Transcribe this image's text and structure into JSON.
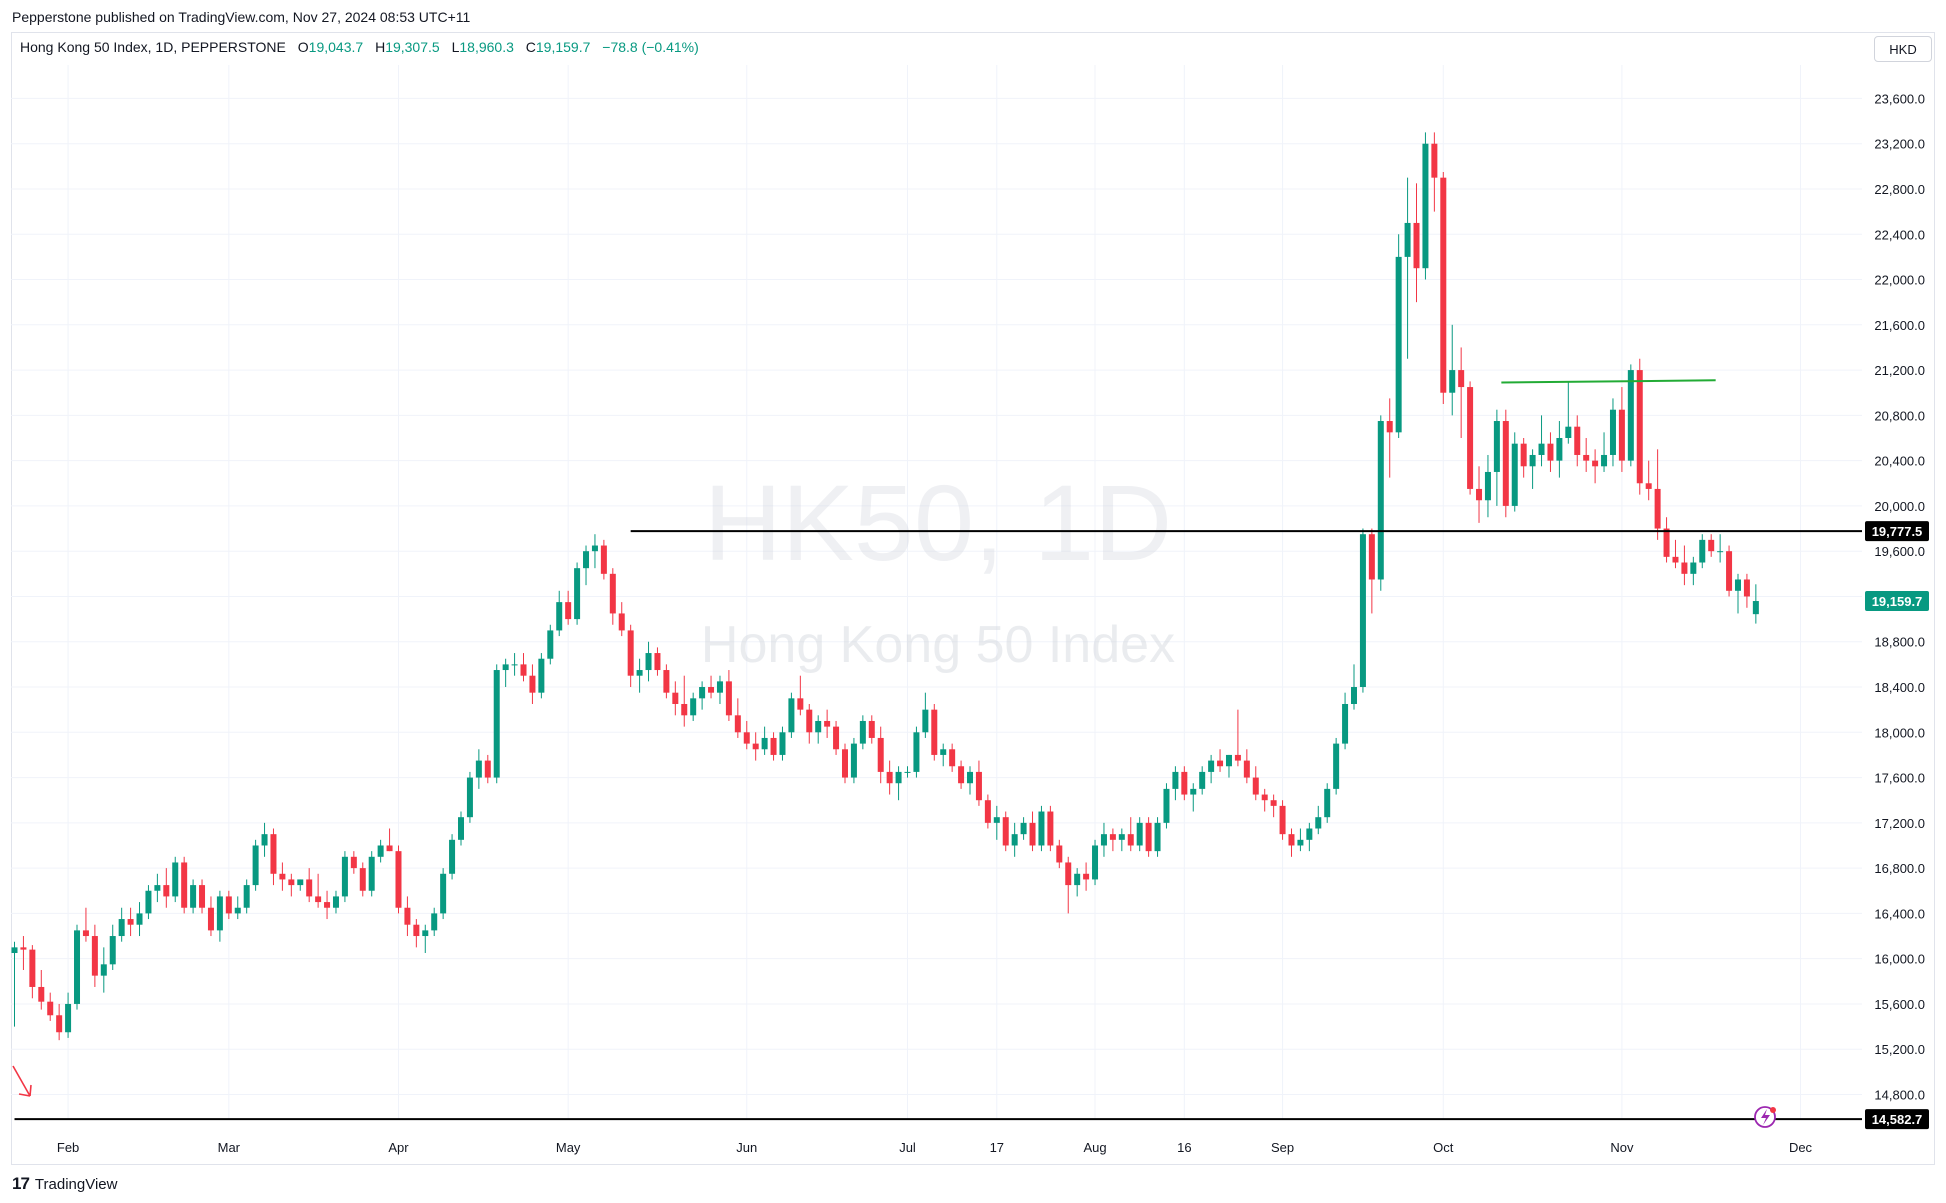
{
  "header": {
    "published": "Pepperstone published on TradingView.com, Nov 27, 2024 08:53 UTC+11"
  },
  "legend": {
    "symbol": "Hong Kong 50 Index, 1D, PEPPERSTONE",
    "open_label": "O",
    "open": "19,043.7",
    "high_label": "H",
    "high": "19,307.5",
    "low_label": "L",
    "low": "18,960.3",
    "close_label": "C",
    "close": "19,159.7",
    "change": "−78.8 (−0.41%)"
  },
  "currency": "HKD",
  "watermark": {
    "symbol": "HK50, 1D",
    "name": "Hong Kong 50 Index"
  },
  "footer": {
    "brand": "TradingView"
  },
  "colors": {
    "up": "#089981",
    "down": "#f23645",
    "grid": "#f0f3fa",
    "line_black": "#000000",
    "line_green": "#22ab35"
  },
  "chart_data": {
    "type": "candlestick",
    "y_ticks": [
      14800,
      15200,
      15600,
      16000,
      16400,
      16800,
      17200,
      17600,
      18000,
      18400,
      18800,
      19200,
      19600,
      20000,
      20400,
      20800,
      21200,
      21600,
      22000,
      22400,
      22800,
      23200,
      23600
    ],
    "y_tick_labels": [
      "14,800.0",
      "15,200.0",
      "15,600.0",
      "16,000.0",
      "16,400.0",
      "16,800.0",
      "17,200.0",
      "17,600.0",
      "18,000.0",
      "18,400.0",
      "18,800.0",
      "19,200.0",
      "19,600.0",
      "20,000.0",
      "20,400.0",
      "20,800.0",
      "21,200.0",
      "21,600.0",
      "22,000.0",
      "22,400.0",
      "22,800.0",
      "23,200.0",
      "23,600.0"
    ],
    "ylim": [
      14500,
      24000
    ],
    "x_labels": [
      {
        "label": "Feb",
        "index": 6
      },
      {
        "label": "Mar",
        "index": 24
      },
      {
        "label": "Apr",
        "index": 43
      },
      {
        "label": "May",
        "index": 62
      },
      {
        "label": "Jun",
        "index": 82
      },
      {
        "label": "Jul",
        "index": 100
      },
      {
        "label": "17",
        "index": 110
      },
      {
        "label": "Aug",
        "index": 121
      },
      {
        "label": "16",
        "index": 131
      },
      {
        "label": "Sep",
        "index": 142
      },
      {
        "label": "Oct",
        "index": 160
      },
      {
        "label": "Nov",
        "index": 180
      },
      {
        "label": "Dec",
        "index": 200
      }
    ],
    "price_labels": [
      {
        "label": "19,777.5",
        "value": 19777.5,
        "style": "black"
      },
      {
        "label": "19,159.7",
        "value": 19159.7,
        "style": "green"
      },
      {
        "label": "14,582.7",
        "value": 14582.7,
        "style": "black"
      }
    ],
    "horizontal_lines": [
      {
        "value": 19777.5,
        "from_index": 69,
        "color": "#000000"
      },
      {
        "value": 14582.7,
        "from_index": 0,
        "color": "#000000"
      }
    ],
    "trend_lines": [
      {
        "from_index": 166.5,
        "from_value": 21090,
        "to_index": 190.5,
        "to_value": 21110,
        "color": "#22ab35"
      }
    ],
    "candles": [
      [
        16050,
        16150,
        15400,
        16100
      ],
      [
        16100,
        16200,
        15900,
        16080
      ],
      [
        16080,
        16120,
        15650,
        15750
      ],
      [
        15750,
        15900,
        15550,
        15620
      ],
      [
        15620,
        15700,
        15450,
        15500
      ],
      [
        15500,
        15600,
        15280,
        15350
      ],
      [
        15350,
        15700,
        15300,
        15600
      ],
      [
        15600,
        16300,
        15550,
        16250
      ],
      [
        16250,
        16450,
        16150,
        16200
      ],
      [
        16200,
        16300,
        15750,
        15850
      ],
      [
        15850,
        16100,
        15700,
        15950
      ],
      [
        15950,
        16300,
        15900,
        16200
      ],
      [
        16200,
        16450,
        16150,
        16350
      ],
      [
        16350,
        16450,
        16200,
        16300
      ],
      [
        16300,
        16500,
        16200,
        16400
      ],
      [
        16400,
        16650,
        16350,
        16600
      ],
      [
        16600,
        16750,
        16500,
        16650
      ],
      [
        16650,
        16800,
        16450,
        16550
      ],
      [
        16550,
        16900,
        16500,
        16850
      ],
      [
        16850,
        16900,
        16400,
        16450
      ],
      [
        16450,
        16700,
        16400,
        16650
      ],
      [
        16650,
        16700,
        16400,
        16450
      ],
      [
        16450,
        16550,
        16200,
        16250
      ],
      [
        16250,
        16600,
        16150,
        16550
      ],
      [
        16550,
        16600,
        16350,
        16400
      ],
      [
        16400,
        16550,
        16350,
        16450
      ],
      [
        16450,
        16700,
        16400,
        16650
      ],
      [
        16650,
        17050,
        16600,
        17000
      ],
      [
        17000,
        17200,
        16900,
        17100
      ],
      [
        17100,
        17150,
        16650,
        16750
      ],
      [
        16750,
        16850,
        16600,
        16700
      ],
      [
        16700,
        16750,
        16550,
        16650
      ],
      [
        16650,
        16700,
        16600,
        16700
      ],
      [
        16700,
        16800,
        16500,
        16550
      ],
      [
        16550,
        16750,
        16450,
        16500
      ],
      [
        16500,
        16600,
        16350,
        16450
      ],
      [
        16450,
        16600,
        16400,
        16550
      ],
      [
        16550,
        16950,
        16500,
        16900
      ],
      [
        16900,
        16950,
        16750,
        16800
      ],
      [
        16800,
        16850,
        16550,
        16600
      ],
      [
        16600,
        16950,
        16550,
        16900
      ],
      [
        16900,
        17050,
        16850,
        17000
      ],
      [
        17000,
        17150,
        16950,
        16950
      ],
      [
        16950,
        17000,
        16400,
        16450
      ],
      [
        16450,
        16550,
        16200,
        16300
      ],
      [
        16300,
        16350,
        16100,
        16200
      ],
      [
        16200,
        16300,
        16050,
        16250
      ],
      [
        16250,
        16450,
        16200,
        16400
      ],
      [
        16400,
        16800,
        16350,
        16750
      ],
      [
        16750,
        17100,
        16700,
        17050
      ],
      [
        17050,
        17300,
        17000,
        17250
      ],
      [
        17250,
        17650,
        17200,
        17600
      ],
      [
        17600,
        17850,
        17500,
        17750
      ],
      [
        17750,
        17800,
        17550,
        17600
      ],
      [
        17600,
        18600,
        17550,
        18550
      ],
      [
        18550,
        18650,
        18400,
        18600
      ],
      [
        18600,
        18700,
        18500,
        18600
      ],
      [
        18600,
        18700,
        18450,
        18500
      ],
      [
        18500,
        18600,
        18250,
        18350
      ],
      [
        18350,
        18700,
        18300,
        18650
      ],
      [
        18650,
        18950,
        18600,
        18900
      ],
      [
        18900,
        19250,
        18850,
        19150
      ],
      [
        19150,
        19250,
        18950,
        19000
      ],
      [
        19000,
        19500,
        18950,
        19450
      ],
      [
        19450,
        19650,
        19300,
        19600
      ],
      [
        19600,
        19750,
        19450,
        19650
      ],
      [
        19650,
        19700,
        19350,
        19400
      ],
      [
        19400,
        19450,
        18950,
        19050
      ],
      [
        19050,
        19150,
        18850,
        18900
      ],
      [
        18900,
        18950,
        18400,
        18500
      ],
      [
        18500,
        18650,
        18350,
        18550
      ],
      [
        18550,
        18800,
        18450,
        18700
      ],
      [
        18700,
        18750,
        18500,
        18550
      ],
      [
        18550,
        18600,
        18300,
        18350
      ],
      [
        18350,
        18450,
        18150,
        18250
      ],
      [
        18250,
        18500,
        18050,
        18150
      ],
      [
        18150,
        18350,
        18100,
        18300
      ],
      [
        18300,
        18450,
        18200,
        18400
      ],
      [
        18400,
        18500,
        18300,
        18350
      ],
      [
        18350,
        18500,
        18250,
        18450
      ],
      [
        18450,
        18550,
        18100,
        18150
      ],
      [
        18150,
        18300,
        17950,
        18000
      ],
      [
        18000,
        18100,
        17850,
        17900
      ],
      [
        17900,
        18000,
        17750,
        17850
      ],
      [
        17850,
        18050,
        17800,
        17950
      ],
      [
        17950,
        18000,
        17750,
        17800
      ],
      [
        17800,
        18050,
        17750,
        18000
      ],
      [
        18000,
        18350,
        17950,
        18300
      ],
      [
        18300,
        18500,
        18150,
        18200
      ],
      [
        18200,
        18250,
        17900,
        18000
      ],
      [
        18000,
        18150,
        17900,
        18100
      ],
      [
        18100,
        18200,
        17950,
        18050
      ],
      [
        18050,
        18100,
        17800,
        17850
      ],
      [
        17850,
        17900,
        17550,
        17600
      ],
      [
        17600,
        17950,
        17550,
        17900
      ],
      [
        17900,
        18150,
        17850,
        18100
      ],
      [
        18100,
        18150,
        17900,
        17950
      ],
      [
        17950,
        18050,
        17550,
        17650
      ],
      [
        17650,
        17750,
        17450,
        17550
      ],
      [
        17550,
        17700,
        17400,
        17650
      ],
      [
        17650,
        17700,
        17600,
        17650
      ],
      [
        17650,
        18050,
        17600,
        18000
      ],
      [
        18000,
        18350,
        17950,
        18200
      ],
      [
        18200,
        18250,
        17750,
        17800
      ],
      [
        17800,
        17900,
        17700,
        17850
      ],
      [
        17850,
        17900,
        17650,
        17700
      ],
      [
        17700,
        17750,
        17500,
        17550
      ],
      [
        17550,
        17700,
        17450,
        17650
      ],
      [
        17650,
        17750,
        17350,
        17400
      ],
      [
        17400,
        17450,
        17150,
        17200
      ],
      [
        17200,
        17350,
        17050,
        17250
      ],
      [
        17250,
        17300,
        16950,
        17000
      ],
      [
        17000,
        17200,
        16900,
        17100
      ],
      [
        17100,
        17250,
        17050,
        17200
      ],
      [
        17200,
        17300,
        16950,
        17000
      ],
      [
        17000,
        17350,
        16950,
        17300
      ],
      [
        17300,
        17350,
        16950,
        17000
      ],
      [
        17000,
        17050,
        16800,
        16850
      ],
      [
        16850,
        16900,
        16400,
        16650
      ],
      [
        16650,
        16800,
        16550,
        16750
      ],
      [
        16750,
        16850,
        16600,
        16700
      ],
      [
        16700,
        17050,
        16650,
        17000
      ],
      [
        17000,
        17200,
        16900,
        17100
      ],
      [
        17100,
        17150,
        16950,
        17050
      ],
      [
        17050,
        17150,
        16950,
        17100
      ],
      [
        17100,
        17250,
        16950,
        17000
      ],
      [
        17000,
        17250,
        16950,
        17200
      ],
      [
        17200,
        17250,
        16900,
        16950
      ],
      [
        16950,
        17250,
        16900,
        17200
      ],
      [
        17200,
        17550,
        17150,
        17500
      ],
      [
        17500,
        17700,
        17400,
        17650
      ],
      [
        17650,
        17700,
        17400,
        17450
      ],
      [
        17450,
        17550,
        17300,
        17500
      ],
      [
        17500,
        17700,
        17450,
        17650
      ],
      [
        17650,
        17800,
        17550,
        17750
      ],
      [
        17750,
        17850,
        17650,
        17700
      ],
      [
        17700,
        17800,
        17600,
        17800
      ],
      [
        17800,
        18200,
        17700,
        17750
      ],
      [
        17750,
        17850,
        17550,
        17600
      ],
      [
        17600,
        17700,
        17400,
        17450
      ],
      [
        17450,
        17500,
        17300,
        17400
      ],
      [
        17400,
        17450,
        17250,
        17350
      ],
      [
        17350,
        17400,
        17050,
        17100
      ],
      [
        17100,
        17150,
        16900,
        17000
      ],
      [
        17000,
        17150,
        16950,
        17050
      ],
      [
        17050,
        17200,
        16950,
        17150
      ],
      [
        17150,
        17350,
        17100,
        17250
      ],
      [
        17250,
        17550,
        17200,
        17500
      ],
      [
        17500,
        17950,
        17450,
        17900
      ],
      [
        17900,
        18350,
        17850,
        18250
      ],
      [
        18250,
        18600,
        18200,
        18400
      ],
      [
        18400,
        19800,
        18350,
        19750
      ],
      [
        19750,
        19800,
        19050,
        19350
      ],
      [
        19350,
        20800,
        19250,
        20750
      ],
      [
        20750,
        20950,
        20250,
        20650
      ],
      [
        20650,
        22400,
        20600,
        22200
      ],
      [
        22200,
        22900,
        21300,
        22500
      ],
      [
        22500,
        22850,
        21800,
        22100
      ],
      [
        22100,
        23300,
        22000,
        23200
      ],
      [
        23200,
        23300,
        22600,
        22900
      ],
      [
        22900,
        22950,
        20900,
        21000
      ],
      [
        21000,
        21600,
        20800,
        21200
      ],
      [
        21200,
        21400,
        20600,
        21050
      ],
      [
        21050,
        21100,
        20100,
        20150
      ],
      [
        20150,
        20350,
        19850,
        20050
      ],
      [
        20050,
        20450,
        19900,
        20300
      ],
      [
        20300,
        20850,
        20000,
        20750
      ],
      [
        20750,
        20850,
        19900,
        20000
      ],
      [
        20000,
        20650,
        19950,
        20550
      ],
      [
        20550,
        20600,
        20250,
        20350
      ],
      [
        20350,
        20500,
        20150,
        20450
      ],
      [
        20450,
        20800,
        20350,
        20550
      ],
      [
        20550,
        20650,
        20300,
        20400
      ],
      [
        20400,
        20750,
        20250,
        20600
      ],
      [
        20600,
        21100,
        20550,
        20700
      ],
      [
        20700,
        20800,
        20350,
        20450
      ],
      [
        20450,
        20600,
        20300,
        20400
      ],
      [
        20400,
        20500,
        20200,
        20350
      ],
      [
        20350,
        20650,
        20300,
        20450
      ],
      [
        20450,
        20950,
        20350,
        20850
      ],
      [
        20850,
        21050,
        20300,
        20400
      ],
      [
        20400,
        21250,
        20350,
        21200
      ],
      [
        21200,
        21300,
        20100,
        20200
      ],
      [
        20200,
        20400,
        20050,
        20150
      ],
      [
        20150,
        20500,
        19700,
        19800
      ],
      [
        19800,
        19900,
        19500,
        19550
      ],
      [
        19550,
        19700,
        19450,
        19500
      ],
      [
        19500,
        19650,
        19300,
        19400
      ],
      [
        19400,
        19550,
        19300,
        19500
      ],
      [
        19500,
        19750,
        19450,
        19700
      ],
      [
        19700,
        19750,
        19550,
        19600
      ],
      [
        19600,
        19750,
        19500,
        19600
      ],
      [
        19600,
        19650,
        19200,
        19250
      ],
      [
        19250,
        19400,
        19050,
        19350
      ],
      [
        19350,
        19400,
        19100,
        19200
      ],
      [
        19043.7,
        19307.5,
        18960.3,
        19159.7
      ]
    ]
  }
}
